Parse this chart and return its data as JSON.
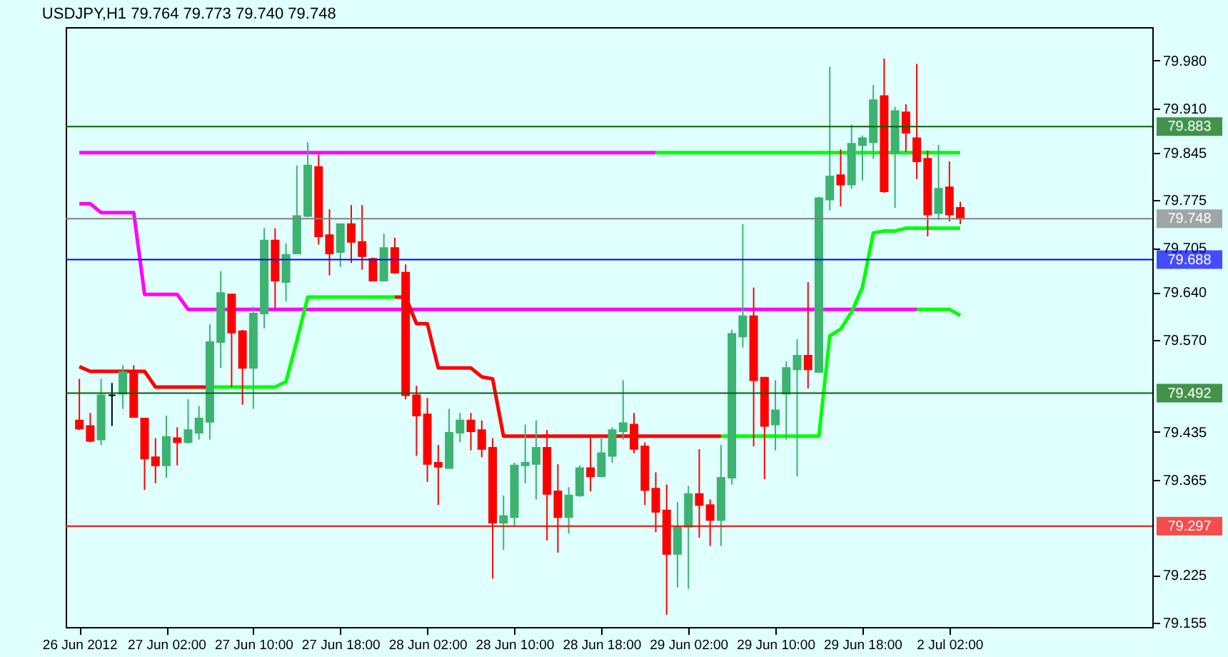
{
  "chart_data": {
    "type": "candlestick",
    "title": "USDJPY,H1  79.764 79.773 79.740 79.748",
    "categories": [
      "26 Jun 2012",
      null,
      null,
      null,
      null,
      null,
      null,
      null,
      "27 Jun 02:00",
      null,
      null,
      null,
      null,
      null,
      null,
      null,
      "27 Jun 10:00",
      null,
      null,
      null,
      null,
      null,
      null,
      null,
      "27 Jun 18:00",
      null,
      null,
      null,
      null,
      null,
      null,
      null,
      "28 Jun 02:00",
      null,
      null,
      null,
      null,
      null,
      null,
      null,
      "28 Jun 10:00",
      null,
      null,
      null,
      null,
      null,
      null,
      null,
      "28 Jun 18:00",
      null,
      null,
      null,
      null,
      null,
      null,
      null,
      "29 Jun 02:00",
      null,
      null,
      null,
      null,
      null,
      null,
      null,
      "29 Jun 10:00",
      null,
      null,
      null,
      null,
      null,
      null,
      null,
      "29 Jun 18:00",
      null,
      null,
      null,
      null,
      null,
      null,
      null,
      "2 Jul 02:00",
      null
    ],
    "ohlc": [
      [
        79.452,
        79.513,
        79.438,
        79.44
      ],
      [
        79.444,
        79.463,
        79.42,
        79.422
      ],
      [
        79.424,
        79.513,
        79.416,
        79.489
      ],
      [
        79.489,
        79.507,
        79.444,
        79.489
      ],
      [
        79.491,
        79.533,
        79.469,
        79.523
      ],
      [
        79.525,
        79.533,
        79.457,
        79.457
      ],
      [
        79.455,
        79.455,
        79.35,
        79.396
      ],
      [
        79.398,
        79.426,
        79.36,
        79.386
      ],
      [
        79.386,
        79.459,
        79.368,
        79.428
      ],
      [
        79.426,
        79.442,
        79.386,
        79.42
      ],
      [
        79.42,
        79.483,
        79.418,
        79.438
      ],
      [
        79.434,
        79.473,
        79.424,
        79.455
      ],
      [
        79.45,
        79.593,
        79.424,
        79.567
      ],
      [
        79.567,
        79.671,
        79.529,
        79.639
      ],
      [
        79.637,
        79.637,
        79.501,
        79.581
      ],
      [
        79.583,
        79.585,
        79.475,
        79.529
      ],
      [
        79.529,
        79.619,
        79.469,
        79.609
      ],
      [
        79.609,
        79.734,
        79.587,
        79.716
      ],
      [
        79.716,
        79.734,
        79.617,
        79.657
      ],
      [
        79.655,
        79.712,
        79.627,
        79.695
      ],
      [
        79.697,
        79.826,
        79.697,
        79.752
      ],
      [
        79.752,
        79.86,
        79.75,
        79.826
      ],
      [
        79.824,
        79.842,
        79.71,
        79.722
      ],
      [
        79.724,
        79.762,
        79.665,
        79.697
      ],
      [
        79.699,
        79.74,
        79.677,
        79.74
      ],
      [
        79.74,
        79.768,
        79.683,
        79.714
      ],
      [
        79.714,
        79.768,
        79.673,
        79.693
      ],
      [
        79.689,
        79.691,
        79.657,
        79.657
      ],
      [
        79.657,
        79.726,
        79.657,
        79.705
      ],
      [
        79.705,
        79.72,
        79.667,
        79.669
      ],
      [
        79.669,
        79.681,
        79.483,
        79.489
      ],
      [
        79.489,
        79.503,
        79.4,
        79.459
      ],
      [
        79.461,
        79.485,
        79.362,
        79.388
      ],
      [
        79.39,
        79.416,
        79.328,
        79.384
      ],
      [
        79.382,
        79.469,
        79.382,
        79.434
      ],
      [
        79.434,
        79.463,
        79.42,
        79.452
      ],
      [
        79.452,
        79.463,
        79.408,
        79.436
      ],
      [
        79.438,
        79.452,
        79.398,
        79.41
      ],
      [
        79.412,
        79.426,
        79.22,
        79.302
      ],
      [
        79.302,
        79.342,
        79.262,
        79.312
      ],
      [
        79.31,
        79.39,
        79.296,
        79.386
      ],
      [
        79.386,
        79.446,
        79.36,
        79.39
      ],
      [
        79.388,
        79.452,
        79.336,
        79.412
      ],
      [
        79.412,
        79.438,
        79.276,
        79.344
      ],
      [
        79.348,
        79.388,
        79.258,
        79.31
      ],
      [
        79.31,
        79.354,
        79.286,
        79.342
      ],
      [
        79.342,
        79.386,
        79.34,
        79.382
      ],
      [
        79.382,
        79.428,
        79.348,
        79.37
      ],
      [
        79.37,
        79.428,
        79.37,
        79.404
      ],
      [
        79.4,
        79.442,
        79.39,
        79.438
      ],
      [
        79.436,
        79.511,
        79.424,
        79.448
      ],
      [
        79.446,
        79.463,
        79.404,
        79.41
      ],
      [
        79.414,
        79.42,
        79.328,
        79.35
      ],
      [
        79.352,
        79.376,
        79.288,
        79.318
      ],
      [
        79.32,
        79.358,
        79.167,
        79.256
      ],
      [
        79.256,
        79.332,
        79.207,
        79.296
      ],
      [
        79.296,
        79.356,
        79.205,
        79.344
      ],
      [
        79.344,
        79.41,
        79.28,
        79.328
      ],
      [
        79.328,
        79.336,
        79.268,
        79.306
      ],
      [
        79.306,
        79.416,
        79.268,
        79.368
      ],
      [
        79.368,
        79.585,
        79.358,
        79.579
      ],
      [
        79.575,
        79.74,
        79.559,
        79.605
      ],
      [
        79.605,
        79.647,
        79.414,
        79.511
      ],
      [
        79.515,
        79.515,
        79.366,
        79.444
      ],
      [
        79.446,
        79.511,
        79.408,
        79.467
      ],
      [
        79.491,
        79.539,
        79.424,
        79.529
      ],
      [
        79.527,
        79.571,
        79.37,
        79.547
      ],
      [
        79.547,
        79.655,
        79.499,
        79.527
      ],
      [
        79.523,
        79.78,
        79.523,
        79.778
      ],
      [
        79.776,
        79.971,
        79.76,
        79.81
      ],
      [
        79.812,
        79.85,
        79.766,
        79.798
      ],
      [
        79.798,
        79.886,
        79.792,
        79.858
      ],
      [
        79.856,
        79.87,
        79.804,
        79.866
      ],
      [
        79.86,
        79.944,
        79.836,
        79.922
      ],
      [
        79.928,
        79.983,
        79.786,
        79.788
      ],
      [
        79.844,
        79.912,
        79.764,
        79.906
      ],
      [
        79.904,
        79.916,
        79.846,
        79.874
      ],
      [
        79.866,
        79.975,
        79.806,
        79.832
      ],
      [
        79.836,
        79.848,
        79.722,
        79.754
      ],
      [
        79.756,
        79.856,
        79.746,
        79.792
      ],
      [
        79.794,
        79.832,
        79.744,
        79.754
      ],
      [
        79.764,
        79.773,
        79.74,
        79.748
      ]
    ],
    "colors": [
      "#ff0000",
      "#ff0000",
      "#3cb371",
      "#000000",
      "#3cb371",
      "#ff0000",
      "#ff0000",
      "#ff0000",
      "#3cb371",
      "#ff0000",
      "#3cb371",
      "#3cb371",
      "#3cb371",
      "#3cb371",
      "#ff0000",
      "#ff0000",
      "#3cb371",
      "#3cb371",
      "#ff0000",
      "#3cb371",
      "#3cb371",
      "#3cb371",
      "#ff0000",
      "#ff0000",
      "#3cb371",
      "#ff0000",
      "#ff0000",
      "#ff0000",
      "#3cb371",
      "#ff0000",
      "#ff0000",
      "#ff0000",
      "#ff0000",
      "#ff0000",
      "#3cb371",
      "#3cb371",
      "#ff0000",
      "#ff0000",
      "#ff0000",
      "#3cb371",
      "#3cb371",
      "#3cb371",
      "#3cb371",
      "#ff0000",
      "#ff0000",
      "#3cb371",
      "#3cb371",
      "#ff0000",
      "#3cb371",
      "#3cb371",
      "#3cb371",
      "#ff0000",
      "#ff0000",
      "#ff0000",
      "#ff0000",
      "#3cb371",
      "#3cb371",
      "#ff0000",
      "#ff0000",
      "#3cb371",
      "#3cb371",
      "#3cb371",
      "#ff0000",
      "#ff0000",
      "#3cb371",
      "#3cb371",
      "#3cb371",
      "#ff0000",
      "#3cb371",
      "#3cb371",
      "#ff0000",
      "#3cb371",
      "#3cb371",
      "#3cb371",
      "#ff0000",
      "#3cb371",
      "#ff0000",
      "#ff0000",
      "#ff0000",
      "#3cb371",
      "#ff0000",
      "#ff0000"
    ],
    "series": [
      {
        "type": "line",
        "color": "#ff00ff",
        "values": [
          79.845,
          79.845,
          79.845,
          79.845,
          79.845,
          79.845,
          79.845,
          79.845,
          79.845,
          79.845,
          79.845,
          79.845,
          79.845,
          79.845,
          79.845,
          79.845,
          79.845,
          79.845,
          79.845,
          79.845,
          79.845,
          79.845,
          79.845,
          79.845,
          79.845,
          79.845,
          79.845,
          79.845,
          79.845,
          79.845,
          79.845,
          79.845,
          79.845,
          79.845,
          79.845,
          79.845,
          79.845,
          79.845,
          79.845,
          79.845,
          79.845,
          79.845,
          79.845,
          79.845,
          79.845,
          79.845,
          79.845,
          79.845,
          79.845,
          79.845,
          79.845,
          79.845,
          79.845,
          79.845,
          null,
          null,
          null,
          null,
          null,
          null,
          null,
          null,
          null,
          null,
          null,
          null,
          null,
          null,
          null,
          null,
          null,
          null,
          null,
          null,
          null,
          null,
          null,
          null,
          null,
          null,
          null,
          null
        ]
      },
      {
        "type": "line",
        "color": "#00ff00",
        "values": [
          null,
          null,
          null,
          null,
          null,
          null,
          null,
          null,
          null,
          null,
          null,
          null,
          null,
          null,
          null,
          null,
          null,
          null,
          null,
          null,
          null,
          null,
          null,
          null,
          null,
          null,
          null,
          null,
          null,
          null,
          null,
          null,
          null,
          null,
          null,
          null,
          null,
          null,
          null,
          null,
          null,
          null,
          null,
          null,
          null,
          null,
          null,
          null,
          null,
          null,
          null,
          null,
          null,
          79.845,
          79.845,
          79.845,
          79.845,
          79.845,
          79.845,
          79.845,
          79.845,
          79.845,
          79.845,
          79.845,
          79.845,
          79.845,
          79.845,
          79.845,
          79.845,
          79.845,
          79.845,
          79.845,
          79.845,
          79.845,
          79.845,
          79.845,
          79.845,
          79.845,
          79.845,
          79.845,
          79.845,
          79.845
        ]
      },
      {
        "type": "line",
        "color": "#ff00ff",
        "values": [
          79.77,
          79.77,
          79.757,
          79.757,
          79.757,
          79.757,
          79.637,
          79.637,
          79.637,
          79.637,
          79.615,
          79.615,
          79.615,
          79.615,
          79.615,
          79.615,
          79.615,
          79.615,
          79.615,
          79.615,
          79.615,
          79.615,
          79.615,
          79.615,
          79.615,
          79.615,
          79.615,
          79.615,
          79.615,
          79.615,
          79.615,
          79.615,
          79.615,
          79.615,
          79.615,
          79.615,
          79.615,
          79.615,
          79.615,
          79.615,
          79.615,
          79.615,
          79.615,
          79.615,
          79.615,
          79.615,
          79.615,
          79.615,
          79.615,
          79.615,
          79.615,
          79.615,
          79.615,
          79.615,
          79.615,
          79.615,
          79.615,
          79.615,
          79.615,
          79.615,
          79.615,
          79.615,
          79.615,
          79.615,
          79.615,
          79.615,
          79.615,
          79.615,
          79.615,
          79.615,
          79.615,
          79.615,
          79.615,
          79.615,
          79.615,
          79.615,
          79.615,
          79.615,
          null,
          null,
          null,
          null
        ]
      },
      {
        "type": "line",
        "color": "#00ff00",
        "values": [
          null,
          null,
          null,
          null,
          null,
          null,
          null,
          null,
          null,
          null,
          null,
          null,
          null,
          null,
          null,
          null,
          null,
          null,
          null,
          null,
          null,
          null,
          null,
          null,
          null,
          null,
          null,
          null,
          null,
          null,
          null,
          null,
          null,
          null,
          null,
          null,
          null,
          null,
          null,
          null,
          null,
          null,
          null,
          null,
          null,
          null,
          null,
          null,
          null,
          null,
          null,
          null,
          null,
          null,
          null,
          null,
          null,
          null,
          null,
          null,
          null,
          null,
          null,
          null,
          null,
          null,
          null,
          null,
          null,
          null,
          null,
          null,
          null,
          null,
          null,
          null,
          null,
          79.615,
          79.615,
          79.615,
          79.615,
          79.606
        ]
      },
      {
        "type": "line",
        "color": "#ff0000",
        "values": [
          79.531,
          79.524,
          79.524,
          79.524,
          79.524,
          79.524,
          79.524,
          79.501,
          79.501,
          79.501,
          79.501,
          79.501,
          79.501,
          null,
          null,
          null,
          null,
          null,
          null,
          null,
          null,
          null,
          null,
          null,
          null,
          null,
          null,
          null,
          null,
          null,
          null,
          null,
          null,
          null,
          null,
          null,
          null,
          null,
          null,
          null,
          null,
          null,
          null,
          null,
          null,
          null,
          null,
          null,
          null,
          null,
          null,
          null,
          null,
          null,
          null,
          null,
          null,
          null,
          null,
          null,
          null,
          null,
          null,
          null,
          null,
          null,
          null,
          null,
          null,
          null,
          null,
          null,
          null,
          null,
          null,
          null,
          null,
          null,
          null,
          null,
          null,
          null
        ]
      },
      {
        "type": "line",
        "color": "#00ff00",
        "values": [
          null,
          null,
          null,
          null,
          null,
          null,
          null,
          null,
          null,
          null,
          null,
          null,
          79.501,
          79.501,
          79.501,
          79.501,
          79.501,
          79.501,
          79.501,
          79.509,
          79.569,
          79.633,
          79.633,
          79.633,
          79.633,
          79.633,
          79.633,
          79.633,
          79.633,
          79.633,
          null,
          null,
          null,
          null,
          null,
          null,
          null,
          null,
          null,
          null,
          null,
          null,
          null,
          null,
          null,
          null,
          null,
          null,
          null,
          null,
          null,
          null,
          null,
          null,
          null,
          null,
          null,
          null,
          null,
          null,
          null,
          null,
          null,
          null,
          null,
          null,
          null,
          null,
          null,
          null,
          null,
          null,
          null,
          null,
          null,
          null,
          null,
          null,
          null,
          null,
          null,
          null
        ]
      },
      {
        "type": "line",
        "color": "#ff0000",
        "values": [
          null,
          null,
          null,
          null,
          null,
          null,
          null,
          null,
          null,
          null,
          null,
          null,
          null,
          null,
          null,
          null,
          null,
          null,
          null,
          null,
          null,
          null,
          null,
          null,
          null,
          null,
          null,
          null,
          null,
          79.633,
          79.633,
          79.594,
          79.594,
          79.529,
          79.529,
          79.529,
          79.529,
          79.516,
          79.513,
          79.429,
          79.429,
          79.429,
          79.429,
          79.429,
          79.429,
          79.429,
          79.429,
          79.429,
          79.429,
          79.429,
          79.429,
          79.429,
          79.429,
          79.429,
          79.429,
          79.429,
          79.429,
          79.429,
          79.429,
          79.429,
          null,
          null,
          null,
          null,
          null,
          null,
          null,
          null,
          null,
          null,
          null,
          null,
          null,
          null,
          null,
          null,
          null,
          null,
          null,
          null,
          null,
          null
        ]
      },
      {
        "type": "line",
        "color": "#00ff00",
        "values": [
          null,
          null,
          null,
          null,
          null,
          null,
          null,
          null,
          null,
          null,
          null,
          null,
          null,
          null,
          null,
          null,
          null,
          null,
          null,
          null,
          null,
          null,
          null,
          null,
          null,
          null,
          null,
          null,
          null,
          null,
          null,
          null,
          null,
          null,
          null,
          null,
          null,
          null,
          null,
          null,
          null,
          null,
          null,
          null,
          null,
          null,
          null,
          null,
          null,
          null,
          null,
          null,
          null,
          null,
          null,
          null,
          null,
          null,
          null,
          79.429,
          79.429,
          79.429,
          79.429,
          79.429,
          79.429,
          79.429,
          79.429,
          79.429,
          79.429,
          79.576,
          79.586,
          79.611,
          79.647,
          79.727,
          79.73,
          79.73,
          79.734,
          79.734,
          79.734,
          79.734,
          79.734,
          79.734
        ]
      }
    ],
    "ylim": [
      79.149,
      80.029
    ],
    "yticks": [
      {
        "value": 79.98,
        "label": "79.980"
      },
      {
        "value": 79.91,
        "label": "79.910"
      },
      79.845,
      79.775,
      79.705,
      {
        "value": 79.64,
        "label": "79.640"
      },
      {
        "value": 79.57,
        "label": "79.570"
      },
      79.435,
      79.365,
      79.225,
      79.155
    ],
    "ref_lines": [
      {
        "axis": "y",
        "value": 79.883,
        "label": "79.883",
        "color": "#006400"
      },
      {
        "axis": "y",
        "value": 79.748,
        "label": "79.748",
        "color": "#808080"
      },
      {
        "axis": "y",
        "value": 79.688,
        "label": "79.688",
        "color": "#0000ff"
      },
      {
        "axis": "y",
        "value": 79.492,
        "label": "79.492",
        "color": "#006400"
      },
      {
        "axis": "y",
        "value": 79.297,
        "label": "79.297",
        "color": "#ff0000"
      }
    ]
  }
}
